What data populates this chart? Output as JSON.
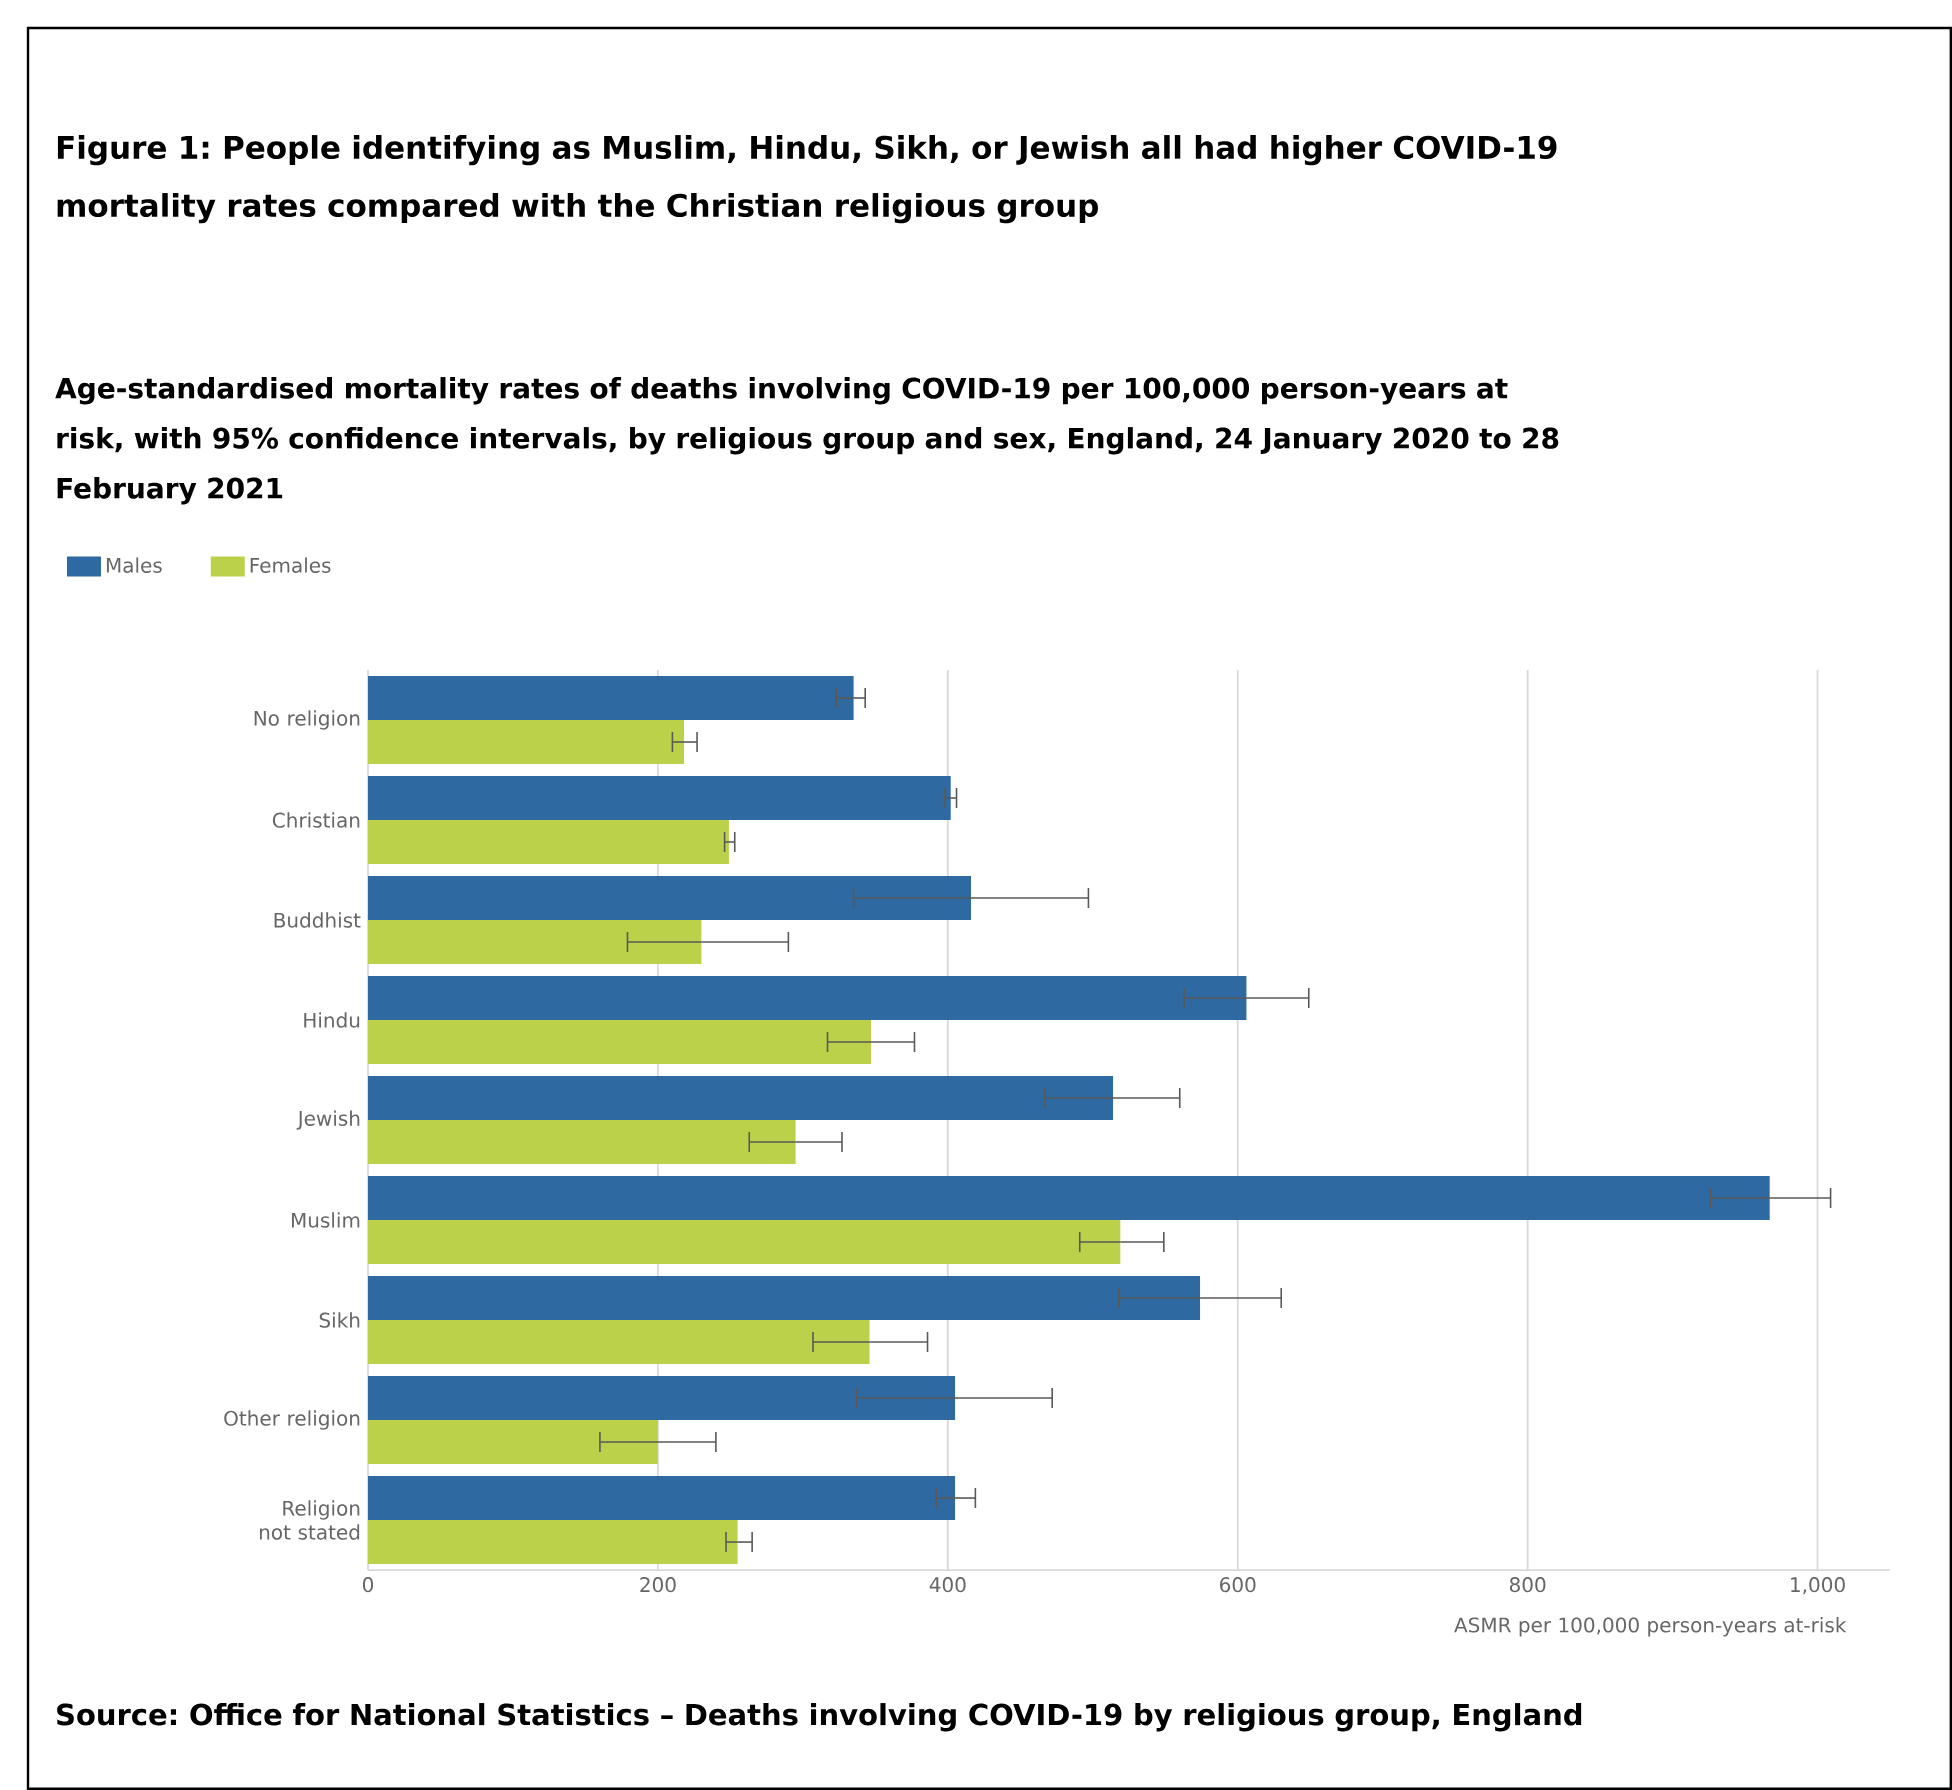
{
  "chart_data": {
    "type": "bar",
    "orientation": "horizontal",
    "title": "Figure 1: People identifying as Muslim, Hindu, Sikh, or Jewish all had higher COVID-19 mortality rates compared with the Christian religious group",
    "subtitle": "Age-standardised mortality rates of deaths involving COVID-19 per 100,000 person-years at risk, with 95% confidence intervals, by religious group and sex, England, 24 January 2020 to 28 February 2021",
    "xlabel": "ASMR per 100,000 person-years at-risk",
    "categories": [
      "No religion",
      "Christian",
      "Buddhist",
      "Hindu",
      "Jewish",
      "Muslim",
      "Sikh",
      "Other religion",
      "Religion not stated"
    ],
    "series": [
      {
        "name": "Males",
        "color": "#2e6aa1",
        "values": [
          335,
          402,
          416,
          606,
          514,
          967,
          574,
          405,
          405
        ],
        "errors": [
          [
            323,
            343
          ],
          [
            398,
            406
          ],
          [
            335,
            497
          ],
          [
            563,
            649
          ],
          [
            467,
            560
          ],
          [
            926,
            1009
          ],
          [
            518,
            630
          ],
          [
            337,
            472
          ],
          [
            392,
            419
          ]
        ]
      },
      {
        "name": "Females",
        "color": "#bcd14a",
        "values": [
          218,
          249,
          230,
          347,
          295,
          519,
          346,
          200,
          255
        ],
        "errors": [
          [
            210,
            227
          ],
          [
            246,
            253
          ],
          [
            179,
            290
          ],
          [
            317,
            377
          ],
          [
            263,
            327
          ],
          [
            491,
            549
          ],
          [
            307,
            386
          ],
          [
            160,
            240
          ],
          [
            247,
            265
          ]
        ]
      }
    ],
    "xlim": [
      0,
      1050
    ],
    "xticks": [
      0,
      200,
      400,
      600,
      800,
      {
        "value": 1000,
        "label": "1,000"
      }
    ],
    "grid": "x",
    "legend": "top left",
    "annotations": [
      "Source: Office for National Statistics – Deaths involving COVID-19 by religious group, England"
    ]
  }
}
